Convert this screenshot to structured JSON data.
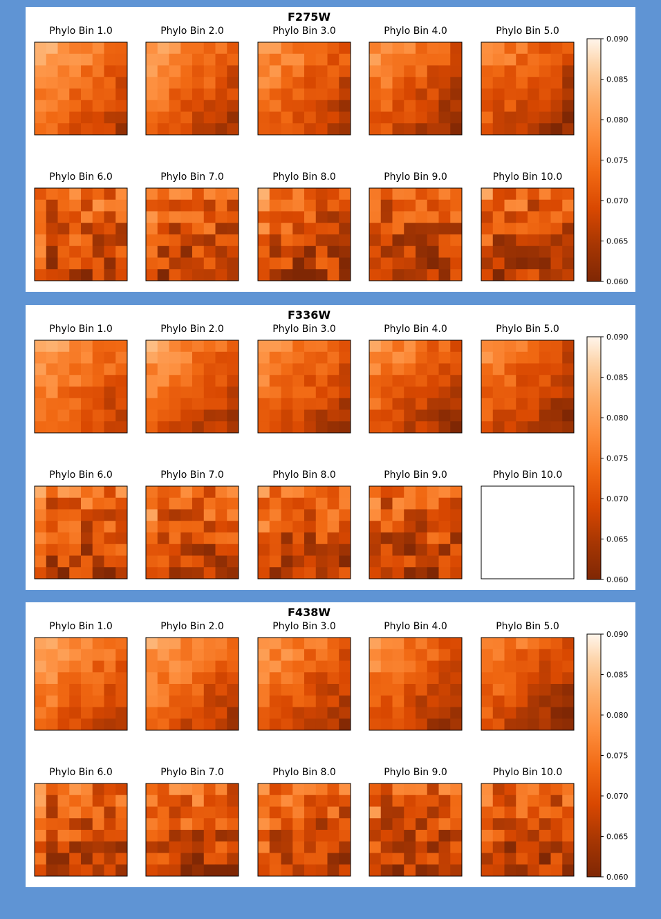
{
  "chart_data": [
    {
      "type": "heatmap",
      "title": "F275W",
      "grid_size": [
        8,
        8
      ],
      "subplot_titles": [
        "Phylo Bin 1.0",
        "Phylo Bin 2.0",
        "Phylo Bin 3.0",
        "Phylo Bin 4.0",
        "Phylo Bin 5.0",
        "Phylo Bin 6.0",
        "Phylo Bin 7.0",
        "Phylo Bin 8.0",
        "Phylo Bin 9.0",
        "Phylo Bin 10.0"
      ],
      "empty_panels": [],
      "colorbar": {
        "vmin": 0.06,
        "vmax": 0.09,
        "ticks": [
          "0.060",
          "0.065",
          "0.070",
          "0.075",
          "0.080",
          "0.085",
          "0.090"
        ],
        "colormap": "Oranges_r"
      }
    },
    {
      "type": "heatmap",
      "title": "F336W",
      "grid_size": [
        8,
        8
      ],
      "subplot_titles": [
        "Phylo Bin 1.0",
        "Phylo Bin 2.0",
        "Phylo Bin 3.0",
        "Phylo Bin 4.0",
        "Phylo Bin 5.0",
        "Phylo Bin 6.0",
        "Phylo Bin 7.0",
        "Phylo Bin 8.0",
        "Phylo Bin 9.0",
        "Phylo Bin 10.0"
      ],
      "empty_panels": [
        9
      ],
      "colorbar": {
        "vmin": 0.06,
        "vmax": 0.09,
        "ticks": [
          "0.060",
          "0.065",
          "0.070",
          "0.075",
          "0.080",
          "0.085",
          "0.090"
        ],
        "colormap": "Oranges_r"
      }
    },
    {
      "type": "heatmap",
      "title": "F438W",
      "grid_size": [
        8,
        8
      ],
      "subplot_titles": [
        "Phylo Bin 1.0",
        "Phylo Bin 2.0",
        "Phylo Bin 3.0",
        "Phylo Bin 4.0",
        "Phylo Bin 5.0",
        "Phylo Bin 6.0",
        "Phylo Bin 7.0",
        "Phylo Bin 8.0",
        "Phylo Bin 9.0",
        "Phylo Bin 10.0"
      ],
      "empty_panels": [],
      "colorbar": {
        "vmin": 0.06,
        "vmax": 0.09,
        "ticks": [
          "0.060",
          "0.065",
          "0.070",
          "0.075",
          "0.080",
          "0.085",
          "0.090"
        ],
        "colormap": "Oranges_r"
      }
    }
  ]
}
